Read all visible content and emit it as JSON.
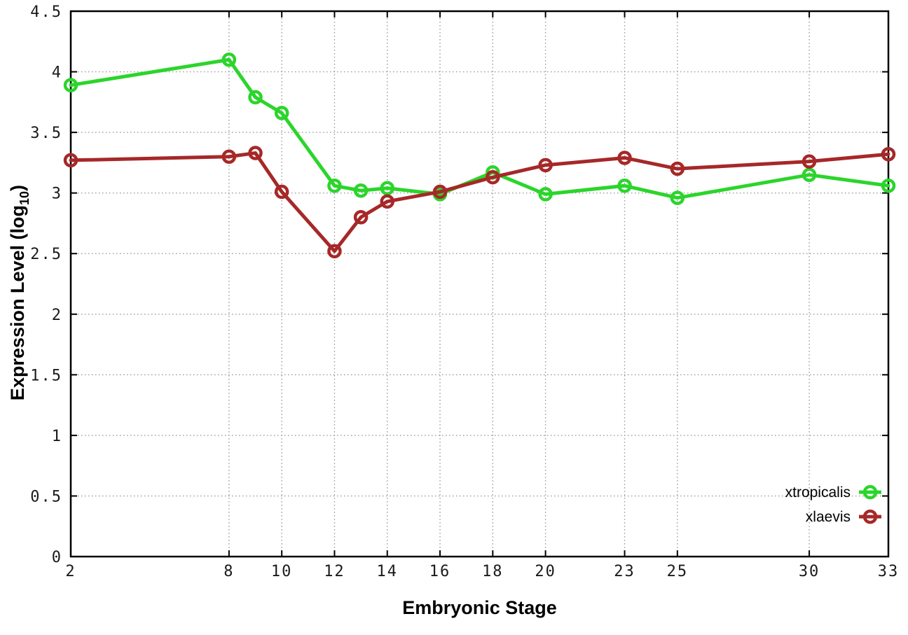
{
  "chart_data": {
    "type": "line",
    "title": "",
    "xlabel": "Embryonic Stage",
    "ylabel": {
      "prefix": "Expression Level (log",
      "sub": "10",
      "suffix": ")"
    },
    "xlim": [
      2,
      33
    ],
    "ylim": [
      0,
      4.5
    ],
    "xticks": [
      2,
      8,
      10,
      12,
      14,
      16,
      18,
      20,
      23,
      25,
      30,
      33
    ],
    "yticks": [
      0,
      0.5,
      1,
      1.5,
      2,
      2.5,
      3,
      3.5,
      4,
      4.5
    ],
    "grid": true,
    "legend_position": "bottom-right",
    "x": [
      2,
      8,
      9,
      10,
      12,
      13,
      14,
      16,
      18,
      20,
      23,
      25,
      30,
      33
    ],
    "series": [
      {
        "name": "xtropicalis",
        "color": "#2bd52b",
        "values": [
          3.89,
          4.1,
          3.79,
          3.66,
          3.06,
          3.02,
          3.04,
          2.99,
          3.17,
          2.99,
          3.06,
          2.96,
          3.15,
          3.06
        ]
      },
      {
        "name": "xlaevis",
        "color": "#a62828",
        "values": [
          3.27,
          3.3,
          3.33,
          3.01,
          2.52,
          2.8,
          2.93,
          3.01,
          3.13,
          3.23,
          3.29,
          3.2,
          3.26,
          3.32
        ]
      }
    ],
    "style": {
      "grid_color": "#999999",
      "axis_color": "#000000",
      "tick_label_color": "#1a1a1a"
    }
  }
}
